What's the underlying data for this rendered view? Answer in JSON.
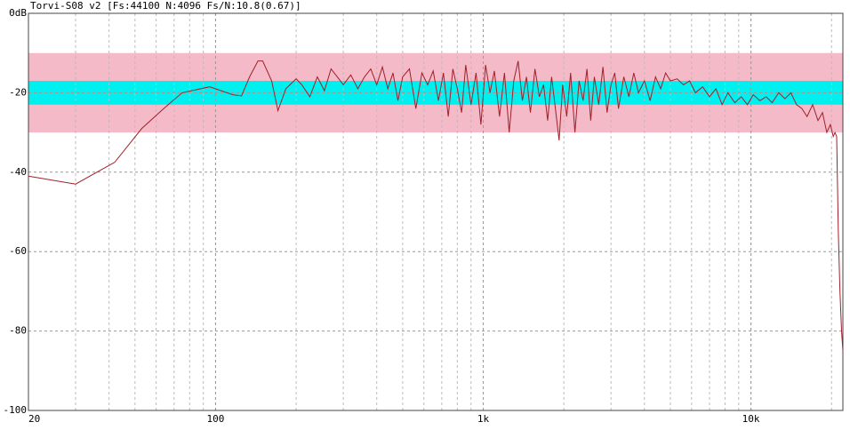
{
  "chart_data": {
    "type": "line",
    "title": "Torvi-S08 v2  [Fs:44100 N:4096 Fs/N:10.8(0.67)]",
    "x_scale": "log",
    "xlim": [
      20,
      22050
    ],
    "ylim": [
      -100,
      0
    ],
    "xticks": [
      20,
      100,
      {
        "value": 1000,
        "label": "1k"
      },
      {
        "value": 10000,
        "label": "10k"
      }
    ],
    "yticks": [
      {
        "value": 0,
        "label": "0dB"
      },
      -20,
      -40,
      -60,
      -80,
      -100
    ],
    "grid": true,
    "minor_grid": true,
    "color": "#a0202a",
    "bands": [
      {
        "from": -10,
        "to": -30,
        "color": "#f4bac8"
      },
      {
        "from": -17,
        "to": -23,
        "color": "#00f0f0"
      }
    ],
    "x": [
      20,
      30,
      42,
      53,
      64,
      75,
      95,
      116,
      125,
      134,
      144,
      150,
      162,
      171,
      183,
      200,
      210,
      225,
      240,
      255,
      270,
      285,
      300,
      320,
      340,
      360,
      380,
      400,
      420,
      440,
      460,
      480,
      500,
      530,
      560,
      590,
      620,
      650,
      680,
      710,
      740,
      770,
      800,
      830,
      860,
      900,
      940,
      980,
      1020,
      1060,
      1100,
      1150,
      1200,
      1250,
      1300,
      1350,
      1400,
      1450,
      1500,
      1560,
      1620,
      1680,
      1740,
      1800,
      1860,
      1920,
      1980,
      2050,
      2120,
      2200,
      2280,
      2360,
      2440,
      2520,
      2600,
      2700,
      2800,
      2900,
      3000,
      3100,
      3200,
      3350,
      3500,
      3650,
      3800,
      4000,
      4200,
      4400,
      4600,
      4800,
      5000,
      5300,
      5600,
      5900,
      6200,
      6600,
      7000,
      7400,
      7800,
      8200,
      8700,
      9200,
      9700,
      10200,
      10800,
      11400,
      12000,
      12700,
      13400,
      14100,
      14800,
      15500,
      16200,
      17000,
      17800,
      18500,
      19200,
      19800,
      20300,
      20600,
      20900,
      21200,
      21500,
      21800,
      22050
    ],
    "values": [
      -41,
      -43,
      -37.5,
      -29,
      -24,
      -20,
      -18.5,
      -20.5,
      -20.8,
      -16,
      -12,
      -12,
      -17,
      -24.5,
      -19,
      -16.5,
      -18,
      -21,
      -16,
      -19.5,
      -14,
      -16,
      -18,
      -15.5,
      -19,
      -16,
      -14,
      -18,
      -13.5,
      -19,
      -15,
      -22,
      -16,
      -14,
      -24,
      -15,
      -18,
      -14.5,
      -22,
      -15,
      -26,
      -14,
      -19,
      -25,
      -13,
      -23,
      -15,
      -28,
      -13,
      -20,
      -14.5,
      -26,
      -15,
      -30,
      -17,
      -12,
      -22,
      -16,
      -25,
      -14,
      -21,
      -18,
      -27,
      -16,
      -24,
      -32,
      -18,
      -26,
      -15,
      -30,
      -17,
      -22,
      -14,
      -27,
      -16,
      -23,
      -13.5,
      -25,
      -18,
      -15,
      -24,
      -16,
      -21,
      -15,
      -20,
      -17,
      -22,
      -16,
      -19,
      -15,
      -17,
      -16.5,
      -18,
      -17,
      -20,
      -18.5,
      -21,
      -19,
      -23,
      -20,
      -22.5,
      -21,
      -23,
      -20.5,
      -22,
      -21,
      -22.5,
      -20,
      -21.5,
      -20,
      -23,
      -24,
      -26,
      -23,
      -27,
      -25,
      -30,
      -28,
      -31,
      -30,
      -31,
      -55,
      -70,
      -80,
      -85
    ]
  }
}
